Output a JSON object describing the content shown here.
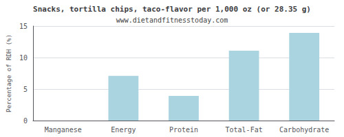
{
  "chart_data": {
    "type": "bar",
    "title": "Snacks, tortilla chips, taco-flavor per 1,000 oz (or 28.35 g)",
    "subtitle": "www.dietandfitnesstoday.com",
    "categories": [
      "Manganese",
      "Energy",
      "Protein",
      "Total-Fat",
      "Carbohydrate"
    ],
    "values": [
      0.0,
      7.1,
      3.9,
      11.1,
      13.9
    ],
    "color": "#aad4e0",
    "ylabel": "Percentage of RDH (%)",
    "ylim": [
      0,
      15
    ],
    "yticks": [
      0,
      5,
      10,
      15
    ],
    "grid": true
  }
}
